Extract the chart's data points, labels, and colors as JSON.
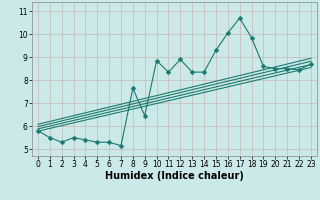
{
  "title": "",
  "xlabel": "Humidex (Indice chaleur)",
  "ylabel": "",
  "bg_color": "#cce9e9",
  "line_color": "#1a7a6e",
  "grid_color": "#b8d8d8",
  "xlim": [
    -0.5,
    23.5
  ],
  "ylim": [
    4.7,
    11.4
  ],
  "xticks": [
    0,
    1,
    2,
    3,
    4,
    5,
    6,
    7,
    8,
    9,
    10,
    11,
    12,
    13,
    14,
    15,
    16,
    17,
    18,
    19,
    20,
    21,
    22,
    23
  ],
  "yticks": [
    5,
    6,
    7,
    8,
    9,
    10,
    11
  ],
  "scatter_x": [
    0,
    1,
    2,
    3,
    4,
    5,
    6,
    7,
    8,
    9,
    10,
    11,
    12,
    13,
    14,
    15,
    16,
    17,
    18,
    19,
    20,
    21,
    22,
    23
  ],
  "scatter_y": [
    5.8,
    5.5,
    5.3,
    5.5,
    5.4,
    5.3,
    5.3,
    5.15,
    7.65,
    6.45,
    8.85,
    8.35,
    8.9,
    8.35,
    8.35,
    9.3,
    10.05,
    10.7,
    9.85,
    8.6,
    8.5,
    8.5,
    8.45,
    8.7
  ],
  "trend_lines": [
    {
      "x0": 0,
      "y0": 5.78,
      "x1": 23,
      "y1": 8.55
    },
    {
      "x0": 0,
      "y0": 5.88,
      "x1": 23,
      "y1": 8.68
    },
    {
      "x0": 0,
      "y0": 5.98,
      "x1": 23,
      "y1": 8.82
    },
    {
      "x0": 0,
      "y0": 6.08,
      "x1": 23,
      "y1": 8.95
    }
  ],
  "marker_size": 2.5,
  "linewidth": 0.8,
  "trend_linewidth": 0.8,
  "tick_fontsize": 5.5,
  "xlabel_fontsize": 7.0,
  "xlabel_fontweight": "bold"
}
